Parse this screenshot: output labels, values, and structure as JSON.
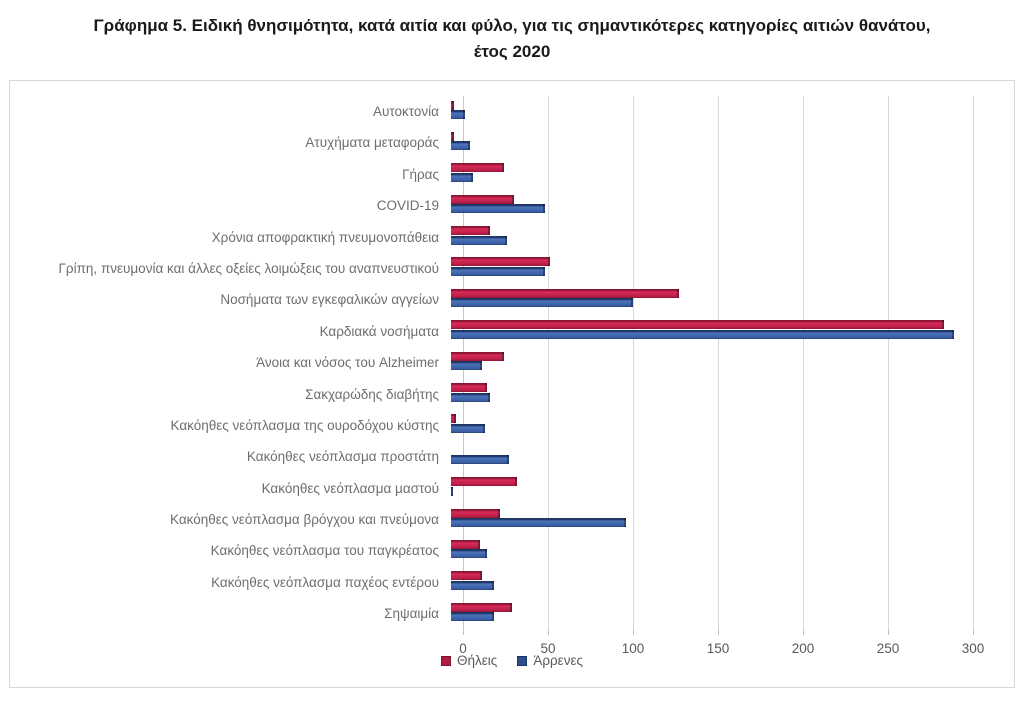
{
  "header": {
    "title_line1": "Γράφημα 5. Ειδική θνησιμότητα, κατά αιτία και φύλο, για τις σημαντικότερες κατηγορίες αιτιών θανάτου,",
    "title_line2": "έτος 2020"
  },
  "chart_data": {
    "type": "bar",
    "orientation": "horizontal",
    "title": "Γράφημα 5. Ειδική θνησιμότητα, κατά αιτία και φύλο, για τις σημαντικότερες κατηγορίες αιτιών θανάτου, έτος 2020",
    "categories": [
      "Αυτοκτονία",
      "Ατυχήματα μεταφοράς",
      "Γήρας",
      "COVID-19",
      "Χρόνια αποφρακτική πνευμονοπάθεια",
      "Γρίπη, πνευμονία και άλλες οξείες λοιμώξεις του αναπνευστικού",
      "Νοσήματα των εγκεφαλικών αγγείων",
      "Καρδιακά νοσήματα",
      "Άνοια και νόσος του Alzheimer",
      "Σακχαρώδης διαβήτης",
      "Κακόηθες νεόπλασμα της ουροδόχου κύστης",
      "Κακόηθες νεόπλασμα προστάτη",
      "Κακόηθες νεόπλασμα μαστού",
      "Κακόηθες νεόπλασμα βρόγχου και πνεύμονα",
      "Κακόηθες νεόπλασμα του παγκρέατος",
      "Κακόηθες νεόπλασμα παχέος εντέρου",
      "Σηψαιμία"
    ],
    "series": [
      {
        "name": "Θήλεις",
        "color": "#c2234b",
        "values": [
          2,
          2,
          31,
          37,
          23,
          58,
          134,
          290,
          31,
          21,
          3,
          0,
          39,
          29,
          17,
          18,
          36
        ]
      },
      {
        "name": "Άρρενες",
        "color": "#41659f",
        "values": [
          8,
          11,
          13,
          55,
          33,
          55,
          107,
          296,
          18,
          23,
          20,
          34,
          1,
          103,
          21,
          25,
          25
        ]
      }
    ],
    "xlim": [
      0,
      300
    ],
    "xticks": [
      0,
      50,
      100,
      150,
      200,
      250,
      300
    ],
    "grid": "vertical",
    "legend_position": "bottom"
  }
}
